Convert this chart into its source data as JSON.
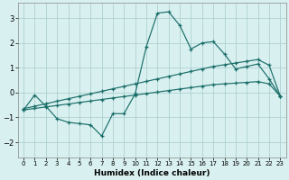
{
  "xlabel": "Humidex (Indice chaleur)",
  "bg_color": "#d8f0ef",
  "line_color": "#1a6e6a",
  "grid_color": "#a8cccc",
  "xlim": [
    -0.5,
    23.5
  ],
  "ylim": [
    -2.6,
    3.6
  ],
  "yticks": [
    -2,
    -1,
    0,
    1,
    2,
    3
  ],
  "xticks": [
    0,
    1,
    2,
    3,
    4,
    5,
    6,
    7,
    8,
    9,
    10,
    11,
    12,
    13,
    14,
    15,
    16,
    17,
    18,
    19,
    20,
    21,
    22,
    23
  ],
  "line1_x": [
    0,
    1,
    2,
    3,
    4,
    5,
    6,
    7,
    8,
    9,
    10,
    11,
    12,
    13,
    14,
    15,
    16,
    17,
    18,
    19,
    20,
    21,
    22,
    23
  ],
  "line1_y": [
    -0.7,
    -0.1,
    -0.55,
    -1.05,
    -1.2,
    -1.25,
    -1.3,
    -1.75,
    -0.85,
    -0.85,
    -0.05,
    1.85,
    3.2,
    3.25,
    2.7,
    1.75,
    2.0,
    2.05,
    1.55,
    0.95,
    1.05,
    1.15,
    0.55,
    -0.15
  ],
  "line2_x": [
    0,
    1,
    2,
    3,
    4,
    5,
    6,
    7,
    8,
    9,
    10,
    11,
    12,
    13,
    14,
    15,
    16,
    17,
    18,
    19,
    20,
    21,
    22,
    23
  ],
  "line2_y": [
    -0.65,
    -0.55,
    -0.45,
    -0.35,
    -0.25,
    -0.15,
    -0.05,
    0.05,
    0.15,
    0.25,
    0.35,
    0.45,
    0.55,
    0.65,
    0.75,
    0.85,
    0.95,
    1.05,
    1.12,
    1.19,
    1.26,
    1.33,
    1.1,
    -0.15
  ],
  "line3_x": [
    0,
    1,
    2,
    3,
    4,
    5,
    6,
    7,
    8,
    9,
    10,
    11,
    12,
    13,
    14,
    15,
    16,
    17,
    18,
    19,
    20,
    21,
    22,
    23
  ],
  "line3_y": [
    -0.7,
    -0.64,
    -0.58,
    -0.52,
    -0.46,
    -0.4,
    -0.34,
    -0.28,
    -0.22,
    -0.16,
    -0.1,
    -0.04,
    0.02,
    0.08,
    0.14,
    0.2,
    0.26,
    0.32,
    0.35,
    0.38,
    0.41,
    0.44,
    0.35,
    -0.15
  ]
}
